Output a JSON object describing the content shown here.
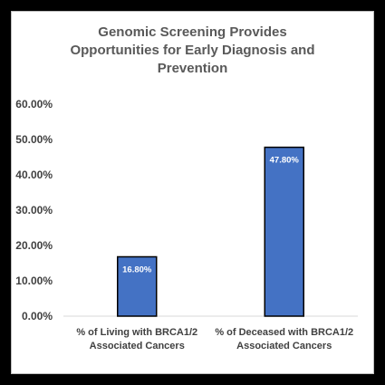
{
  "chart_data": {
    "type": "bar",
    "title_lines": [
      "Genomic Screening Provides",
      "Opportunities for Early Diagnosis and",
      "Prevention"
    ],
    "categories": [
      [
        "% of Living with BRCA1/2",
        "Associated Cancers"
      ],
      [
        "% of Deceased with BRCA1/2",
        "Associated Cancers"
      ]
    ],
    "values": [
      16.8,
      47.8
    ],
    "data_labels": [
      "16.80%",
      "47.80%"
    ],
    "yticks": [
      "0.00%",
      "10.00%",
      "20.00%",
      "30.00%",
      "40.00%",
      "50.00%",
      "60.00%"
    ],
    "ylim": [
      0,
      60
    ],
    "grid": false,
    "bar_color": "#4472c4",
    "bar_edge_color": "#000000"
  }
}
